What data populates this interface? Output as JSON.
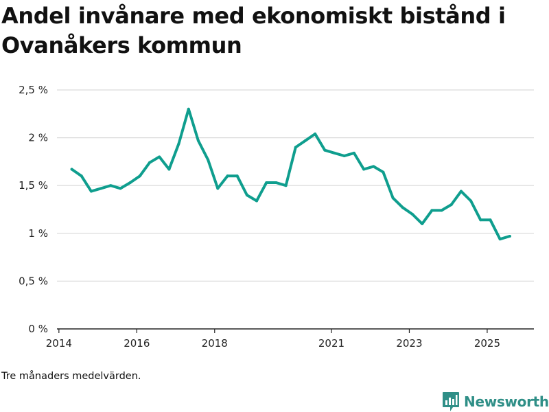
{
  "title": "Andel invånare med ekonomiskt bistånd i Ovanåkers kommun",
  "footnote": "Tre månaders medelvärden.",
  "brand": {
    "name": "Newsworthy",
    "logo_icon": "bar-chart-logo-icon"
  },
  "colors": {
    "line": "#0f9e8e",
    "grid": "#d9d9d9",
    "axis": "#222222",
    "brand": "#2f8f87"
  },
  "chart_data": {
    "type": "line",
    "title": "Andel invånare med ekonomiskt bistånd i Ovanåkers kommun",
    "xlabel": "",
    "ylabel": "",
    "grid": true,
    "ylim": [
      0,
      2.5
    ],
    "xlim": [
      2013.95,
      2026.2
    ],
    "y_ticks": [
      {
        "value": 0,
        "label": "0 %"
      },
      {
        "value": 0.5,
        "label": "0,5 %"
      },
      {
        "value": 1,
        "label": "1 %"
      },
      {
        "value": 1.5,
        "label": "1,5 %"
      },
      {
        "value": 2,
        "label": "2 %"
      },
      {
        "value": 2.5,
        "label": "2,5 %"
      }
    ],
    "x_ticks": [
      {
        "value": 2014,
        "label": "2014"
      },
      {
        "value": 2016,
        "label": "2016"
      },
      {
        "value": 2018,
        "label": "2018"
      },
      {
        "value": 2021,
        "label": "2021"
      },
      {
        "value": 2023,
        "label": "2023"
      },
      {
        "value": 2025,
        "label": "2025"
      }
    ],
    "series": [
      {
        "name": "Andel invånare med ekonomiskt bistånd",
        "x": [
          2014.33,
          2014.58,
          2014.83,
          2015.08,
          2015.33,
          2015.58,
          2015.83,
          2016.08,
          2016.33,
          2016.58,
          2016.83,
          2017.08,
          2017.33,
          2017.58,
          2017.83,
          2018.08,
          2018.33,
          2018.58,
          2018.83,
          2019.08,
          2019.33,
          2019.58,
          2019.83,
          2020.08,
          2020.33,
          2020.58,
          2020.83,
          2021.08,
          2021.33,
          2021.58,
          2021.83,
          2022.08,
          2022.33,
          2022.58,
          2022.83,
          2023.08,
          2023.33,
          2023.58,
          2023.83,
          2024.08,
          2024.33,
          2024.58,
          2024.83,
          2025.08,
          2025.33,
          2025.58
        ],
        "values": [
          1.67,
          1.6,
          1.44,
          1.47,
          1.5,
          1.47,
          1.53,
          1.6,
          1.74,
          1.8,
          1.67,
          1.94,
          2.3,
          1.97,
          1.77,
          1.47,
          1.6,
          1.6,
          1.4,
          1.34,
          1.53,
          1.53,
          1.5,
          1.9,
          1.97,
          2.04,
          1.87,
          1.84,
          1.81,
          1.84,
          1.67,
          1.7,
          1.64,
          1.37,
          1.27,
          1.2,
          1.1,
          1.24,
          1.24,
          1.3,
          1.44,
          1.34,
          1.14,
          1.14,
          0.94,
          0.97
        ]
      }
    ]
  }
}
